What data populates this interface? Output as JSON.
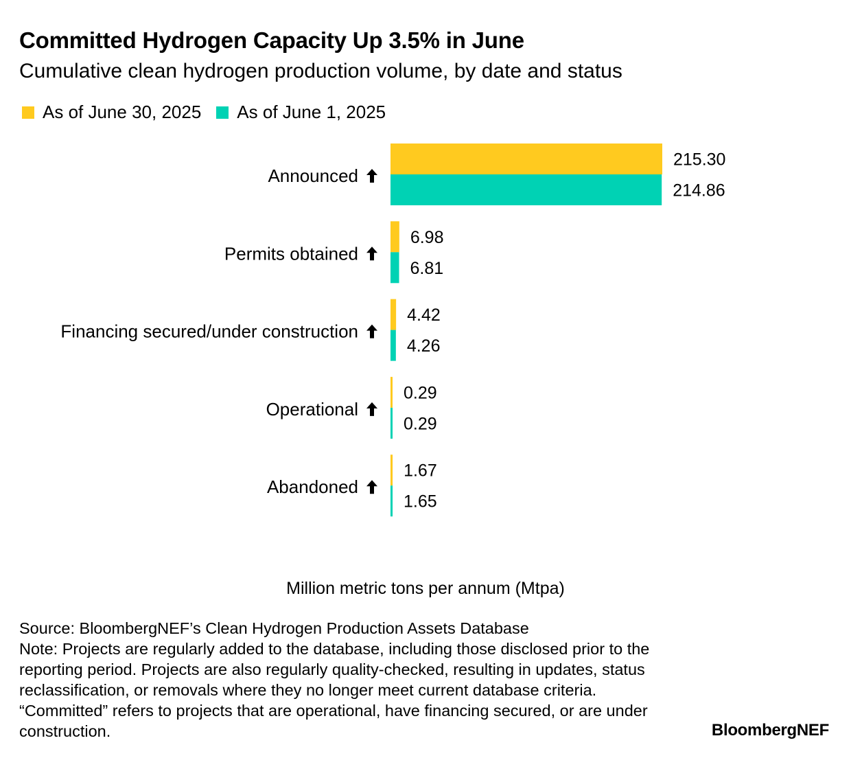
{
  "title": "Committed Hydrogen Capacity Up 3.5% in June",
  "subtitle": "Cumulative clean hydrogen production volume, by date and status",
  "colors": {
    "june30": "#FFCA1F",
    "june1": "#00D2B4",
    "text": "#000000"
  },
  "chart_data": {
    "type": "bar",
    "orientation": "horizontal",
    "categories": [
      "Announced",
      "Permits obtained",
      "Financing secured/under construction",
      "Operational",
      "Abandoned"
    ],
    "category_marker": "↑",
    "series": [
      {
        "name": "As of June 30, 2025",
        "color": "#FFCA1F",
        "values": [
          215.3,
          6.98,
          4.42,
          0.29,
          1.67
        ],
        "labels": [
          "215.30",
          "6.98",
          "4.42",
          "0.29",
          "1.67"
        ]
      },
      {
        "name": "As of June 1, 2025",
        "color": "#00D2B4",
        "values": [
          214.86,
          6.81,
          4.26,
          0.29,
          1.65
        ],
        "labels": [
          "214.86",
          "6.81",
          "4.26",
          "0.29",
          "1.65"
        ]
      }
    ],
    "xlabel": "Million metric tons per annum (Mtpa)",
    "xlim": [
      0,
      215.3
    ],
    "grid": false,
    "legend": "top-left"
  },
  "footer": {
    "source": "Source: BloombergNEF’s Clean Hydrogen Production Assets Database",
    "note": "Note: Projects are regularly added to the database, including those disclosed prior to the reporting period. Projects are also regularly quality-checked, resulting in updates, status reclassification, or removals where they no longer meet current database criteria. “Committed” refers to projects that are operational, have financing secured, or are under construction."
  },
  "brand": "BloombergNEF"
}
